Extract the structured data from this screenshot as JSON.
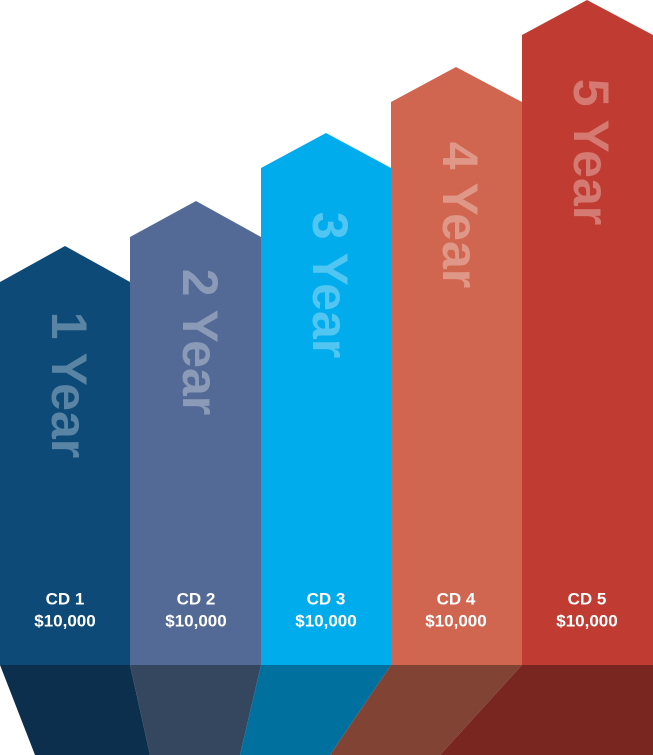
{
  "columns": [
    {
      "term": "1 Year",
      "name": "CD 1",
      "amount": "$10,000"
    },
    {
      "term": "2 Year",
      "name": "CD 2",
      "amount": "$10,000"
    },
    {
      "term": "3 Year",
      "name": "CD 3",
      "amount": "$10,000"
    },
    {
      "term": "4 Year",
      "name": "CD 4",
      "amount": "$10,000"
    },
    {
      "term": "5 Year",
      "name": "CD 5",
      "amount": "$10,000"
    }
  ]
}
